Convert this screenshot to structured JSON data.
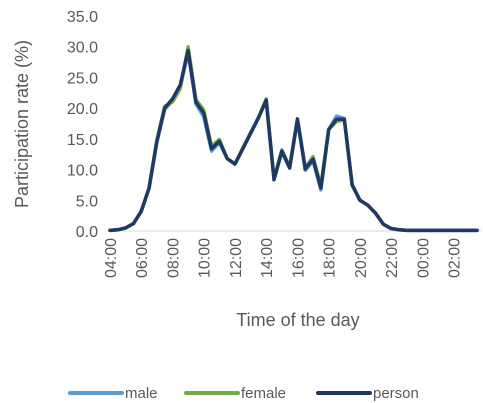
{
  "chart_data": {
    "type": "line",
    "xlabel": "Time of the day",
    "ylabel": "Participation rate (%)",
    "ylim": [
      0,
      35
    ],
    "yticks": [
      "0.0",
      "5.0",
      "10.0",
      "15.0",
      "20.0",
      "25.0",
      "30.0",
      "35.0"
    ],
    "xtick_labels": [
      "04:00",
      "06:00",
      "08:00",
      "10:00",
      "12:00",
      "14:00",
      "16:00",
      "18:00",
      "20:00",
      "22:00",
      "00:00",
      "02:00"
    ],
    "x": [
      "04:00",
      "04:30",
      "05:00",
      "05:30",
      "06:00",
      "06:30",
      "07:00",
      "07:30",
      "08:00",
      "08:30",
      "09:00",
      "09:30",
      "10:00",
      "10:30",
      "11:00",
      "11:30",
      "12:00",
      "12:30",
      "13:00",
      "13:30",
      "14:00",
      "14:30",
      "15:00",
      "15:30",
      "16:00",
      "16:30",
      "17:00",
      "17:30",
      "18:00",
      "18:30",
      "19:00",
      "19:30",
      "20:00",
      "20:30",
      "21:00",
      "21:30",
      "22:00",
      "22:30",
      "23:00",
      "23:30",
      "00:00",
      "00:30",
      "01:00",
      "01:30",
      "02:00",
      "02:30",
      "03:00",
      "03:30"
    ],
    "grid": false,
    "legend_position": "bottom",
    "series": [
      {
        "name": "male",
        "color": "#5b9bd5",
        "values": [
          0.1,
          0.2,
          0.5,
          1.2,
          3.2,
          6.9,
          14.4,
          19.8,
          21.2,
          23.5,
          29.0,
          20.7,
          18.6,
          13.0,
          14.4,
          11.8,
          10.9,
          13.4,
          15.9,
          18.5,
          21.2,
          8.3,
          12.9,
          10.2,
          18.1,
          9.9,
          11.4,
          6.7,
          16.5,
          18.7,
          18.3,
          7.5,
          5.0,
          4.2,
          2.9,
          1.1,
          0.4,
          0.2,
          0.1,
          0.1,
          0.1,
          0.1,
          0.1,
          0.1,
          0.1,
          0.1,
          0.1,
          0.1
        ]
      },
      {
        "name": "female",
        "color": "#70ad47",
        "values": [
          0.1,
          0.2,
          0.5,
          1.2,
          3.2,
          7.0,
          14.8,
          20.3,
          21.0,
          23.2,
          30.0,
          21.4,
          19.7,
          13.8,
          14.9,
          11.8,
          10.9,
          13.5,
          16.0,
          18.4,
          21.5,
          8.5,
          13.2,
          10.4,
          18.3,
          10.3,
          12.1,
          7.3,
          16.6,
          17.8,
          18.1,
          7.6,
          5.0,
          4.2,
          2.9,
          1.1,
          0.4,
          0.2,
          0.1,
          0.1,
          0.1,
          0.1,
          0.1,
          0.1,
          0.1,
          0.1,
          0.1,
          0.1
        ]
      },
      {
        "name": "person",
        "color": "#203864",
        "values": [
          0.1,
          0.2,
          0.5,
          1.2,
          3.2,
          7.0,
          14.6,
          20.0,
          21.5,
          23.8,
          29.4,
          21.0,
          19.2,
          13.4,
          14.6,
          11.8,
          10.9,
          13.4,
          15.9,
          18.4,
          21.3,
          8.4,
          13.0,
          10.3,
          18.2,
          10.1,
          11.7,
          7.0,
          16.5,
          18.2,
          18.2,
          7.5,
          5.0,
          4.2,
          2.9,
          1.1,
          0.4,
          0.2,
          0.1,
          0.1,
          0.1,
          0.1,
          0.1,
          0.1,
          0.1,
          0.1,
          0.1,
          0.1
        ]
      }
    ]
  }
}
